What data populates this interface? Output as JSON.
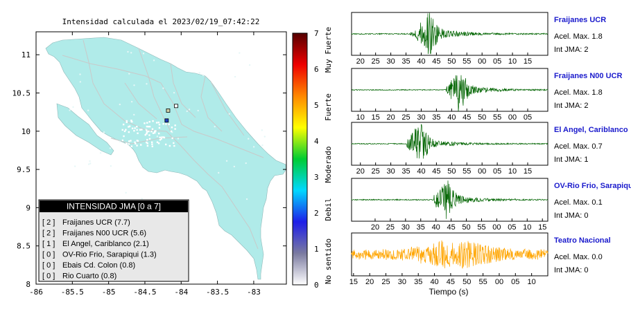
{
  "chart_data": [
    {
      "type": "map",
      "title": "Intensidad calculada el 2023/02/19_07:42:22",
      "xlim": [
        -86,
        -82.55
      ],
      "ylim": [
        8,
        11.3
      ],
      "x_ticks": [
        {
          "value": -86,
          "label": "-86"
        },
        {
          "value": -85.5,
          "label": "-85.5"
        },
        {
          "value": -85,
          "label": "-85"
        },
        {
          "value": -84.5,
          "label": "-84.5"
        },
        {
          "value": -84,
          "label": "-84"
        },
        {
          "value": -83.5,
          "label": "-83.5"
        },
        {
          "value": -83,
          "label": "-83"
        }
      ],
      "y_ticks": [
        {
          "value": 8,
          "label": "8"
        },
        {
          "value": 8.5,
          "label": "8.5"
        },
        {
          "value": 9,
          "label": "9"
        },
        {
          "value": 9.5,
          "label": "9.5"
        },
        {
          "value": 10,
          "label": "10"
        },
        {
          "value": 10.5,
          "label": "10.5"
        },
        {
          "value": 11,
          "label": "11"
        }
      ],
      "stations": [
        {
          "lon": -84.2,
          "lat": 10.14,
          "color": "#1f3fbf"
        },
        {
          "lon": -84.18,
          "lat": 10.27,
          "color": "#cfcfa8"
        },
        {
          "lon": -84.07,
          "lat": 10.33,
          "color": "#ffffff"
        }
      ],
      "colorbar": {
        "min": 0,
        "max": 7,
        "ticks": [
          "0",
          "1",
          "2",
          "3",
          "4",
          "5",
          "6",
          "7"
        ],
        "categories": [
          "No sentido",
          "Debil",
          "Moderado",
          "Fuerte",
          "Muy Fuerte"
        ],
        "gradient": [
          "#ffffff",
          "#7a7aa0",
          "#1e1ee8",
          "#00d8ff",
          "#00cc33",
          "#ffff00",
          "#ff8800",
          "#ee0000",
          "#550000"
        ]
      },
      "legend": {
        "title": "INTENSIDAD JMA [0 a 7]",
        "entries": [
          {
            "code": "[ 2 ]",
            "label": "Fraijanes UCR (7.7)"
          },
          {
            "code": "[ 2 ]",
            "label": "Fraijanes N00 UCR (5.6)"
          },
          {
            "code": "[ 1 ]",
            "label": "El Angel, Cariblanco (2.1)"
          },
          {
            "code": "[ 0 ]",
            "label": "OV-Rio Frio, Sarapiqui (1.3)"
          },
          {
            "code": "[ 0 ]",
            "label": "Ebais Cd. Colon (0.8)"
          },
          {
            "code": "[ 0 ]",
            "label": "Rio Cuarto (0.8)"
          }
        ]
      }
    },
    {
      "type": "line",
      "xlabel": "Tiempo (s)",
      "series": [
        {
          "name": "Fraijanes UCR",
          "accel_label": "Acel. Max. 1.8",
          "jma_label": "Int JMA: 2",
          "tick_labels": [
            "20",
            "25",
            "30",
            "35",
            "40",
            "45",
            "50",
            "55",
            "00",
            "05",
            "10",
            "15"
          ],
          "first_tick_frac": 0.045,
          "tick_step_frac": 0.0775,
          "color": "#006400",
          "onset_frac": 0.3,
          "peak_frac": 0.38,
          "amplitude": 1.0
        },
        {
          "name": "Fraijanes N00 UCR",
          "accel_label": "Acel. Max. 1.8",
          "jma_label": "Int JMA: 2",
          "tick_labels": [
            "10",
            "15",
            "20",
            "25",
            "30",
            "35",
            "40",
            "45",
            "50",
            "55",
            "00",
            "05"
          ],
          "first_tick_frac": 0.045,
          "tick_step_frac": 0.0775,
          "color": "#006400",
          "onset_frac": 0.48,
          "peak_frac": 0.54,
          "amplitude": 0.85
        },
        {
          "name": "El Angel, Cariblanco",
          "accel_label": "Acel. Max. 0.7",
          "jma_label": "Int JMA: 1",
          "tick_labels": [
            "20",
            "25",
            "30",
            "35",
            "40",
            "45",
            "50",
            "55",
            "00",
            "05",
            "10",
            "15"
          ],
          "first_tick_frac": 0.045,
          "tick_step_frac": 0.0775,
          "color": "#006400",
          "onset_frac": 0.28,
          "peak_frac": 0.34,
          "amplitude": 0.85
        },
        {
          "name": "OV-Rio Frio, Sarapiqui",
          "accel_label": "Acel. Max. 0.1",
          "jma_label": "Int JMA: 0",
          "tick_labels": [
            "20",
            "25",
            "30",
            "35",
            "40",
            "45",
            "50",
            "55",
            "00",
            "05",
            "10",
            "15"
          ],
          "first_tick_frac": 0.12,
          "tick_step_frac": 0.0775,
          "color": "#006400",
          "onset_frac": 0.42,
          "peak_frac": 0.47,
          "amplitude": 0.9
        },
        {
          "name": "Teatro Nacional",
          "accel_label": "Acel. Max. 0.0",
          "jma_label": "Int JMA: 0",
          "tick_labels": [
            "15",
            "20",
            "25",
            "30",
            "35",
            "40",
            "45",
            "50",
            "55",
            "00",
            "05",
            "10"
          ],
          "first_tick_frac": 0.01,
          "tick_step_frac": 0.0825,
          "color": "#ffa500",
          "onset_frac": 0.0,
          "peak_frac": 0.52,
          "amplitude": 0.75,
          "noise": true
        }
      ]
    }
  ]
}
